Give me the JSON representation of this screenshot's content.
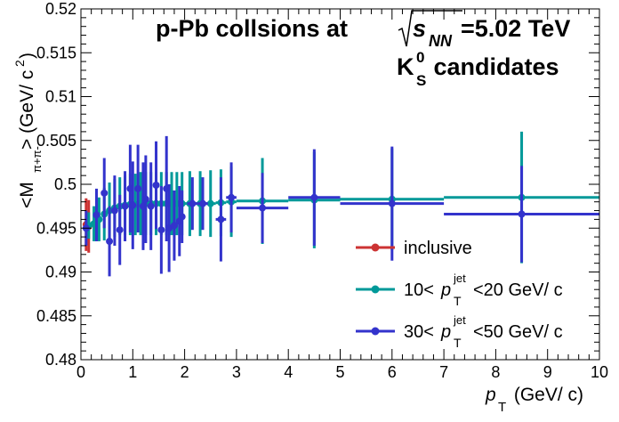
{
  "chart_data": {
    "type": "scatter",
    "title": {
      "line1_prefix": "p-Pb collsions at",
      "sqrt_symbol": "√",
      "sqrt_var": "s",
      "sqrt_sub": "NN",
      "line1_suffix": "=5.02 TeV",
      "line2_main": "K",
      "line2_sup": "0",
      "line2_sub": "S",
      "line2_rest": " candidates"
    },
    "xlabel": {
      "var": "p",
      "sub": "T",
      "unit": " (GeV/ c)"
    },
    "ylabel": {
      "pre": "<M",
      "sub": "π+π-",
      "unit": "> (GeV/ c",
      "unit_sup": "2",
      "unit_end": ")"
    },
    "xlim": [
      0,
      10
    ],
    "ylim": [
      0.48,
      0.52
    ],
    "x_ticks": [
      "0",
      "1",
      "2",
      "3",
      "4",
      "5",
      "6",
      "7",
      "8",
      "9",
      "10"
    ],
    "y_ticks": [
      "0.48",
      "0.485",
      "0.49",
      "0.495",
      "0.5",
      "0.505",
      "0.51",
      "0.515",
      "0.52"
    ],
    "grid": false,
    "legend_position": "bottom-right",
    "colors": {
      "inclusive": "#cc3333",
      "jet10": "#009999",
      "jet30": "#3333cc"
    },
    "legend": [
      {
        "key": "inclusive",
        "label": "inclusive"
      },
      {
        "key": "jet10",
        "pre": "10<",
        "var": "p",
        "sup": "jet",
        "sub": "T",
        "post": "<20 GeV/ c"
      },
      {
        "key": "jet30",
        "pre": "30<",
        "var": "p",
        "sup": "jet",
        "sub": "T",
        "post": "<50 GeV/ c"
      }
    ],
    "series": [
      {
        "key": "inclusive",
        "points": [
          {
            "x": 0.1,
            "y": 0.4954,
            "xerr": 0.05,
            "yerr": 0.003
          },
          {
            "x": 0.15,
            "y": 0.4952,
            "xerr": 0.05,
            "yerr": 0.003
          }
        ]
      },
      {
        "key": "jet10",
        "points": [
          {
            "x": 0.15,
            "y": 0.4953,
            "xerr": 0.05,
            "yerr": 0.0015
          },
          {
            "x": 0.25,
            "y": 0.4955,
            "xerr": 0.05,
            "yerr": 0.002
          },
          {
            "x": 0.35,
            "y": 0.496,
            "xerr": 0.05,
            "yerr": 0.0025
          },
          {
            "x": 0.45,
            "y": 0.4966,
            "xerr": 0.05,
            "yerr": 0.003
          },
          {
            "x": 0.55,
            "y": 0.497,
            "xerr": 0.05,
            "yerr": 0.0032
          },
          {
            "x": 0.65,
            "y": 0.4973,
            "xerr": 0.05,
            "yerr": 0.0033
          },
          {
            "x": 0.75,
            "y": 0.4975,
            "xerr": 0.05,
            "yerr": 0.0033
          },
          {
            "x": 0.85,
            "y": 0.4976,
            "xerr": 0.05,
            "yerr": 0.0034
          },
          {
            "x": 0.95,
            "y": 0.4977,
            "xerr": 0.05,
            "yerr": 0.0035
          },
          {
            "x": 1.05,
            "y": 0.4977,
            "xerr": 0.05,
            "yerr": 0.0035
          },
          {
            "x": 1.15,
            "y": 0.4978,
            "xerr": 0.05,
            "yerr": 0.0036
          },
          {
            "x": 1.25,
            "y": 0.4978,
            "xerr": 0.05,
            "yerr": 0.0036
          },
          {
            "x": 1.35,
            "y": 0.4978,
            "xerr": 0.05,
            "yerr": 0.0036
          },
          {
            "x": 1.45,
            "y": 0.4978,
            "xerr": 0.05,
            "yerr": 0.0036
          },
          {
            "x": 1.55,
            "y": 0.4978,
            "xerr": 0.05,
            "yerr": 0.0036
          },
          {
            "x": 1.65,
            "y": 0.4978,
            "xerr": 0.05,
            "yerr": 0.0036
          },
          {
            "x": 1.75,
            "y": 0.4978,
            "xerr": 0.05,
            "yerr": 0.0036
          },
          {
            "x": 1.85,
            "y": 0.4978,
            "xerr": 0.05,
            "yerr": 0.0036
          },
          {
            "x": 1.95,
            "y": 0.4978,
            "xerr": 0.05,
            "yerr": 0.0036
          },
          {
            "x": 2.1,
            "y": 0.4978,
            "xerr": 0.1,
            "yerr": 0.0037
          },
          {
            "x": 2.3,
            "y": 0.4978,
            "xerr": 0.1,
            "yerr": 0.0037
          },
          {
            "x": 2.5,
            "y": 0.4978,
            "xerr": 0.1,
            "yerr": 0.0038
          },
          {
            "x": 2.7,
            "y": 0.4979,
            "xerr": 0.1,
            "yerr": 0.0038
          },
          {
            "x": 2.9,
            "y": 0.498,
            "xerr": 0.1,
            "yerr": 0.004
          },
          {
            "x": 3.5,
            "y": 0.4981,
            "xerr": 0.5,
            "yerr": 0.0049
          },
          {
            "x": 4.5,
            "y": 0.4982,
            "xerr": 0.5,
            "yerr": 0.0055
          },
          {
            "x": 6.0,
            "y": 0.4983,
            "xerr": 1.0,
            "yerr": 0.0058
          },
          {
            "x": 8.5,
            "y": 0.4985,
            "xerr": 1.5,
            "yerr": 0.0075
          }
        ]
      },
      {
        "key": "jet30",
        "points": [
          {
            "x": 0.1,
            "y": 0.495,
            "xerr": 0.05,
            "yerr": 0.002
          },
          {
            "x": 0.3,
            "y": 0.4965,
            "xerr": 0.05,
            "yerr": 0.003
          },
          {
            "x": 0.45,
            "y": 0.499,
            "xerr": 0.05,
            "yerr": 0.004
          },
          {
            "x": 0.55,
            "y": 0.4935,
            "xerr": 0.05,
            "yerr": 0.004
          },
          {
            "x": 0.65,
            "y": 0.497,
            "xerr": 0.05,
            "yerr": 0.004
          },
          {
            "x": 0.75,
            "y": 0.4948,
            "xerr": 0.05,
            "yerr": 0.004
          },
          {
            "x": 0.85,
            "y": 0.4975,
            "xerr": 0.05,
            "yerr": 0.004
          },
          {
            "x": 0.95,
            "y": 0.4995,
            "xerr": 0.05,
            "yerr": 0.005
          },
          {
            "x": 1.0,
            "y": 0.4976,
            "xerr": 0.05,
            "yerr": 0.005
          },
          {
            "x": 1.1,
            "y": 0.4995,
            "xerr": 0.05,
            "yerr": 0.005
          },
          {
            "x": 1.2,
            "y": 0.4975,
            "xerr": 0.05,
            "yerr": 0.005
          },
          {
            "x": 1.25,
            "y": 0.4983,
            "xerr": 0.05,
            "yerr": 0.005
          },
          {
            "x": 1.35,
            "y": 0.4975,
            "xerr": 0.05,
            "yerr": 0.005
          },
          {
            "x": 1.45,
            "y": 0.4999,
            "xerr": 0.05,
            "yerr": 0.005
          },
          {
            "x": 1.55,
            "y": 0.4948,
            "xerr": 0.05,
            "yerr": 0.005
          },
          {
            "x": 1.65,
            "y": 0.4995,
            "xerr": 0.05,
            "yerr": 0.006
          },
          {
            "x": 1.7,
            "y": 0.495,
            "xerr": 0.05,
            "yerr": 0.005
          },
          {
            "x": 1.8,
            "y": 0.4953,
            "xerr": 0.05,
            "yerr": 0.004
          },
          {
            "x": 1.9,
            "y": 0.4958,
            "xerr": 0.05,
            "yerr": 0.004
          },
          {
            "x": 1.95,
            "y": 0.4963,
            "xerr": 0.05,
            "yerr": 0.003
          },
          {
            "x": 2.15,
            "y": 0.4978,
            "xerr": 0.1,
            "yerr": 0.003
          },
          {
            "x": 2.35,
            "y": 0.4978,
            "xerr": 0.1,
            "yerr": 0.003
          },
          {
            "x": 2.7,
            "y": 0.496,
            "xerr": 0.1,
            "yerr": 0.0048
          },
          {
            "x": 2.9,
            "y": 0.4985,
            "xerr": 0.1,
            "yerr": 0.004
          },
          {
            "x": 3.5,
            "y": 0.4973,
            "xerr": 0.5,
            "yerr": 0.004
          },
          {
            "x": 4.5,
            "y": 0.4985,
            "xerr": 0.5,
            "yerr": 0.0055
          },
          {
            "x": 6.0,
            "y": 0.4978,
            "xerr": 1.0,
            "yerr": 0.0065
          },
          {
            "x": 8.5,
            "y": 0.4966,
            "xerr": 1.5,
            "yerr": 0.0055
          }
        ]
      }
    ]
  }
}
